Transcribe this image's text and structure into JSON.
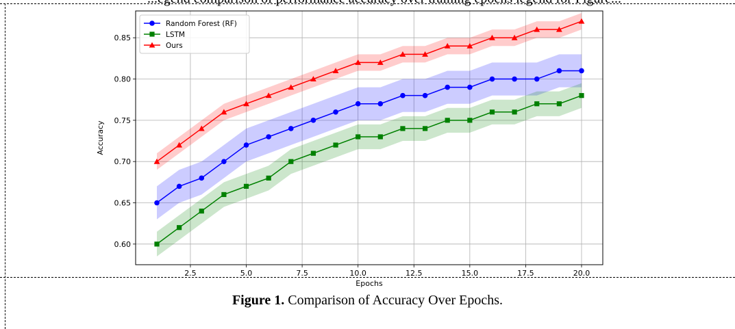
{
  "header_fragment": "...egend comparison of performance accuracy over training epochs legend for Figure...",
  "caption": {
    "label": "Figure 1.",
    "text": " Comparison of Accuracy Over Epochs."
  },
  "chart_data": {
    "type": "line",
    "title": "",
    "xlabel": "Epochs",
    "ylabel": "Accuracy",
    "xlim": [
      0.05,
      20.95
    ],
    "ylim": [
      0.575,
      0.8825
    ],
    "xticks": [
      2.5,
      5.0,
      7.5,
      10.0,
      12.5,
      15.0,
      17.5,
      20.0
    ],
    "yticks": [
      0.6,
      0.65,
      0.7,
      0.75,
      0.8,
      0.85
    ],
    "grid": true,
    "legend_position": "upper-left",
    "x": [
      1,
      2,
      3,
      4,
      5,
      6,
      7,
      8,
      9,
      10,
      11,
      12,
      13,
      14,
      15,
      16,
      17,
      18,
      19,
      20
    ],
    "series": [
      {
        "name": "Random Forest (RF)",
        "color": "#0000ff",
        "marker": "circle",
        "values": [
          0.65,
          0.67,
          0.68,
          0.7,
          0.72,
          0.73,
          0.74,
          0.75,
          0.76,
          0.77,
          0.77,
          0.78,
          0.78,
          0.79,
          0.79,
          0.8,
          0.8,
          0.8,
          0.81,
          0.81
        ],
        "band": 0.02
      },
      {
        "name": "LSTM",
        "color": "#008000",
        "marker": "square",
        "values": [
          0.6,
          0.62,
          0.64,
          0.66,
          0.67,
          0.68,
          0.7,
          0.71,
          0.72,
          0.73,
          0.73,
          0.74,
          0.74,
          0.75,
          0.75,
          0.76,
          0.76,
          0.77,
          0.77,
          0.78
        ],
        "band": 0.015
      },
      {
        "name": "Ours",
        "color": "#ff0000",
        "marker": "triangle",
        "values": [
          0.7,
          0.72,
          0.74,
          0.76,
          0.77,
          0.78,
          0.79,
          0.8,
          0.81,
          0.82,
          0.82,
          0.83,
          0.83,
          0.84,
          0.84,
          0.85,
          0.85,
          0.86,
          0.86,
          0.87
        ],
        "band": 0.01
      }
    ]
  }
}
